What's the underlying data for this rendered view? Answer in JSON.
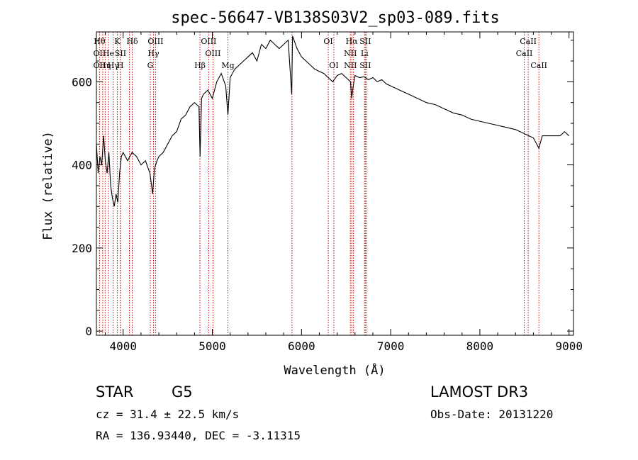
{
  "chart_data": {
    "type": "line",
    "title": "spec-56647-VB138S03V2_sp03-089.fits",
    "xlabel": "Wavelength (Å)",
    "ylabel": "Flux (relative)",
    "xlim": [
      3700,
      9050
    ],
    "ylim": [
      -10,
      720
    ],
    "xticks": [
      4000,
      5000,
      6000,
      7000,
      8000,
      9000
    ],
    "yticks": [
      0,
      200,
      400,
      600
    ],
    "series": [
      {
        "name": "spectrum",
        "x": [
          3700,
          3720,
          3740,
          3760,
          3780,
          3800,
          3820,
          3840,
          3860,
          3880,
          3900,
          3920,
          3940,
          3960,
          3980,
          4000,
          4050,
          4100,
          4150,
          4200,
          4250,
          4300,
          4330,
          4350,
          4380,
          4400,
          4450,
          4500,
          4550,
          4600,
          4650,
          4700,
          4750,
          4800,
          4850,
          4862,
          4880,
          4900,
          4950,
          5000,
          5050,
          5100,
          5150,
          5175,
          5200,
          5250,
          5300,
          5350,
          5400,
          5450,
          5500,
          5550,
          5600,
          5650,
          5700,
          5750,
          5800,
          5850,
          5890,
          5900,
          5950,
          6000,
          6050,
          6100,
          6150,
          6200,
          6250,
          6300,
          6350,
          6400,
          6450,
          6500,
          6550,
          6563,
          6580,
          6600,
          6650,
          6700,
          6750,
          6800,
          6850,
          6900,
          6950,
          7000,
          7100,
          7200,
          7300,
          7400,
          7500,
          7600,
          7700,
          7800,
          7900,
          8000,
          8100,
          8200,
          8300,
          8400,
          8500,
          8550,
          8600,
          8662,
          8700,
          8800,
          8900,
          8950,
          9000
        ],
        "values": [
          450,
          380,
          420,
          400,
          470,
          410,
          380,
          430,
          350,
          320,
          300,
          330,
          310,
          380,
          420,
          430,
          410,
          430,
          420,
          400,
          410,
          380,
          330,
          390,
          410,
          420,
          430,
          450,
          470,
          480,
          510,
          520,
          540,
          550,
          540,
          420,
          560,
          570,
          580,
          560,
          600,
          620,
          590,
          520,
          610,
          630,
          640,
          650,
          660,
          670,
          650,
          690,
          680,
          700,
          690,
          680,
          690,
          700,
          570,
          710,
          680,
          660,
          650,
          640,
          630,
          625,
          620,
          610,
          600,
          615,
          620,
          610,
          600,
          560,
          590,
          615,
          610,
          612,
          605,
          610,
          600,
          605,
          595,
          590,
          580,
          570,
          560,
          550,
          545,
          535,
          525,
          520,
          510,
          505,
          500,
          495,
          490,
          485,
          475,
          470,
          465,
          440,
          470,
          470,
          470,
          480,
          470
        ]
      }
    ],
    "lines": [
      {
        "x": 3735,
        "top": "Hθ",
        "mid": "OII",
        "low": "OII"
      },
      {
        "x": 3771,
        "top": "",
        "mid": "",
        "low": ""
      },
      {
        "x": 3798,
        "top": "",
        "mid": "",
        "low": "Hη"
      },
      {
        "x": 3835,
        "top": "",
        "mid": "He",
        "low": ""
      },
      {
        "x": 3889,
        "top": "",
        "mid": "",
        "low": "Hγ"
      },
      {
        "x": 3934,
        "top": "K",
        "mid": "",
        "low": ""
      },
      {
        "x": 3968,
        "top": "",
        "mid": "",
        "low": "H"
      },
      {
        "x": 3970,
        "top": "",
        "mid": "SII",
        "low": ""
      },
      {
        "x": 4070,
        "top": "",
        "mid": "",
        "low": ""
      },
      {
        "x": 4102,
        "top": "Hδ",
        "mid": "",
        "low": ""
      },
      {
        "x": 4304,
        "top": "",
        "mid": "",
        "low": "G"
      },
      {
        "x": 4340,
        "top": "",
        "mid": "Hγ",
        "low": ""
      },
      {
        "x": 4363,
        "top": "OIII",
        "mid": "",
        "low": ""
      },
      {
        "x": 4861,
        "top": "",
        "mid": "",
        "low": "Hβ"
      },
      {
        "x": 4959,
        "top": "OIII",
        "mid": "",
        "low": ""
      },
      {
        "x": 5007,
        "top": "",
        "mid": "OIII",
        "low": ""
      },
      {
        "x": 5175,
        "top": "",
        "mid": "",
        "low": "Mg"
      },
      {
        "x": 5893,
        "top": "",
        "mid": "",
        "low": ""
      },
      {
        "x": 6300,
        "top": "OI",
        "mid": "",
        "low": ""
      },
      {
        "x": 6363,
        "top": "",
        "mid": "",
        "low": "OI"
      },
      {
        "x": 6548,
        "top": "",
        "mid": "NII",
        "low": "NII"
      },
      {
        "x": 6563,
        "top": "Hα",
        "mid": "",
        "low": ""
      },
      {
        "x": 6583,
        "top": "",
        "mid": "",
        "low": ""
      },
      {
        "x": 6707,
        "top": "",
        "mid": "Li",
        "low": ""
      },
      {
        "x": 6716,
        "top": "SII",
        "mid": "",
        "low": "SII"
      },
      {
        "x": 6731,
        "top": "",
        "mid": "",
        "low": ""
      },
      {
        "x": 8498,
        "top": "",
        "mid": "CaII",
        "low": ""
      },
      {
        "x": 8542,
        "top": "CaII",
        "mid": "",
        "low": ""
      },
      {
        "x": 8662,
        "top": "",
        "mid": "",
        "low": "CaII"
      }
    ]
  },
  "info": {
    "class": "STAR",
    "subclass": "G5",
    "survey": "LAMOST DR3",
    "cz_label": "cz = 31.4 ± 22.5 km/s",
    "obs_date": "Obs-Date: 20131220",
    "radec": "RA = 136.93440, DEC =  -3.11315"
  }
}
